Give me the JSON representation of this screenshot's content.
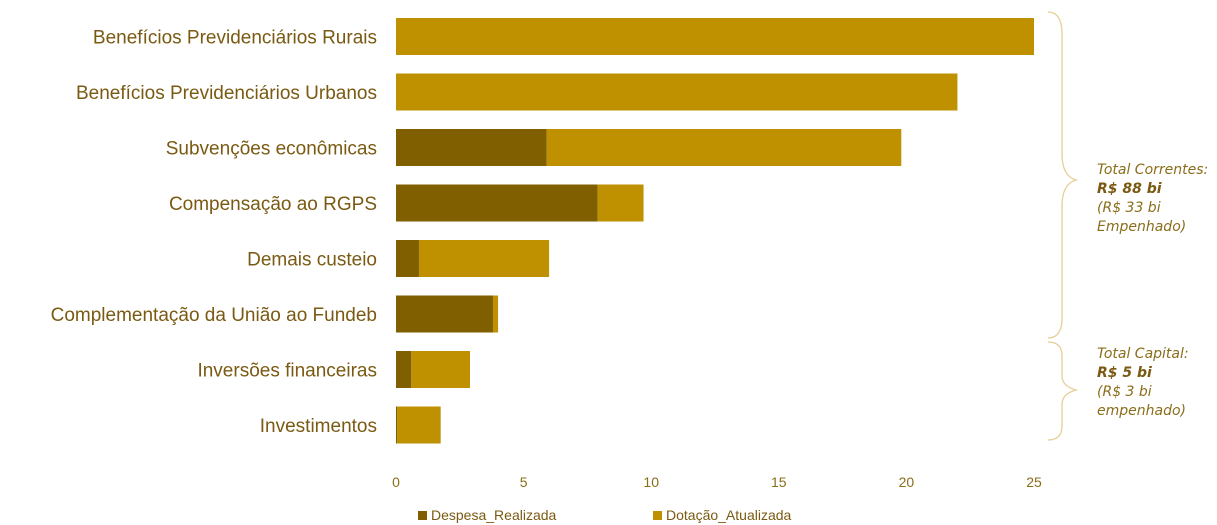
{
  "chart_data": {
    "type": "bar",
    "orientation": "horizontal",
    "stacked": true,
    "categories": [
      "Benefícios Previdenciários Rurais",
      "Benefícios Previdenciários Urbanos",
      "Subvenções econômicas",
      "Compensação ao RGPS",
      "Demais custeio",
      "Complementação da União ao Fundeb",
      "Inversões financeiras",
      "Investimentos"
    ],
    "series": [
      {
        "name": "Despesa_Realizada",
        "color": "#7f5f00",
        "values": [
          0,
          0,
          5.9,
          7.9,
          0.9,
          3.8,
          0.6,
          0.05
        ]
      },
      {
        "name": "Dotação_Atualizada",
        "color": "#bf9000",
        "values": [
          25.0,
          22.0,
          13.9,
          1.8,
          5.1,
          0.2,
          2.3,
          1.7
        ]
      }
    ],
    "xlim": [
      0,
      25
    ],
    "xticks": [
      0,
      5,
      10,
      15,
      20,
      25
    ],
    "xticks_labels": [
      "0",
      "5",
      "10",
      "15",
      "20",
      "25"
    ],
    "legend_position": "bottom",
    "grid": false,
    "annotations": [
      {
        "id": "correntes",
        "label": "Total Correntes:",
        "value": "R$ 88 bi",
        "detail_1": "(R$ 33 bi",
        "detail_2": "Empenhado)"
      },
      {
        "id": "capital",
        "label": "Total Capital:",
        "value": "R$ 5 bi",
        "detail_1": "(R$ 3 bi",
        "detail_2": "empenhado)"
      }
    ]
  }
}
